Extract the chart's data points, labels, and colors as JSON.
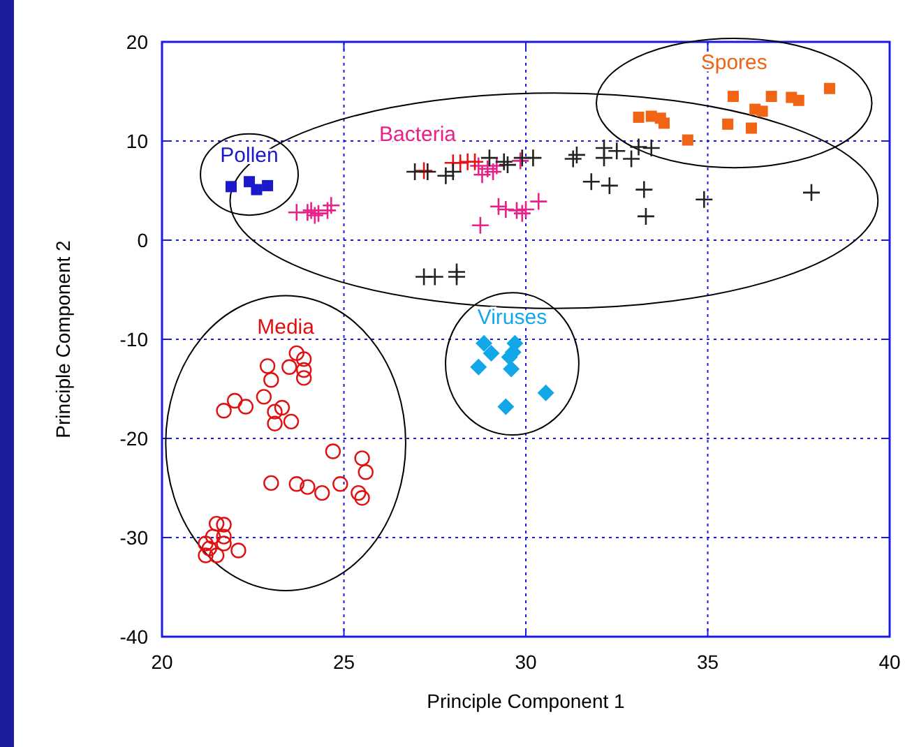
{
  "chart_data": {
    "type": "scatter",
    "xlabel": "Principle Component 1",
    "ylabel": "Principle Component 2",
    "xlim": [
      20,
      40
    ],
    "xticks": [
      20,
      25,
      30,
      35,
      40
    ],
    "ylim": [
      -40,
      20
    ],
    "yticks": [
      -40,
      -30,
      -20,
      -10,
      0,
      10,
      20
    ],
    "grid": true,
    "series": [
      {
        "name": "Pollen",
        "color": "#1a1acc",
        "marker": "square",
        "x": [
          21.9,
          22.4,
          22.6,
          22.9
        ],
        "values": [
          5.4,
          5.9,
          5.1,
          5.5
        ]
      },
      {
        "name": "Spores",
        "color": "#f06414",
        "marker": "square",
        "x": [
          33.1,
          33.45,
          33.7,
          33.8,
          34.45,
          35.55,
          35.7,
          36.2,
          36.3,
          36.5,
          36.75,
          37.3,
          37.5,
          38.35
        ],
        "values": [
          12.4,
          12.5,
          12.3,
          11.8,
          10.1,
          11.7,
          14.5,
          11.3,
          13.2,
          13.0,
          14.5,
          14.4,
          14.1,
          15.3
        ]
      },
      {
        "name": "Bacteria",
        "color": "#e8208a",
        "marker": "cross",
        "x": [
          23.7,
          24.0,
          24.1,
          24.2,
          24.3,
          24.55,
          24.65,
          28.7,
          28.8,
          28.95,
          29.1,
          29.2,
          29.85,
          29.25,
          29.45,
          29.75,
          29.9,
          30.0,
          30.35,
          28.75
        ],
        "values": [
          2.8,
          2.8,
          3.0,
          2.5,
          2.7,
          3.0,
          3.5,
          7.5,
          6.6,
          7.2,
          6.9,
          7.5,
          8.0,
          3.4,
          3.1,
          3.0,
          2.7,
          3.1,
          3.9,
          1.5
        ]
      },
      {
        "color": "#e81010",
        "marker": "cross",
        "x": [
          27.2,
          28.0,
          28.2,
          28.4,
          28.6
        ],
        "values": [
          7.0,
          7.8,
          7.8,
          7.9,
          7.9
        ]
      },
      {
        "color": "#222222",
        "marker": "cross",
        "x": [
          26.95,
          27.3,
          27.8,
          28.0,
          29.0,
          29.4,
          29.5,
          29.9,
          30.2,
          31.3,
          31.4,
          32.15,
          32.15,
          32.5,
          32.9,
          33.1,
          33.45,
          31.8,
          32.3,
          33.25,
          34.9,
          37.85,
          33.3,
          27.2,
          27.5,
          28.1,
          28.1
        ],
        "values": [
          6.9,
          6.9,
          6.5,
          6.9,
          8.3,
          7.9,
          7.6,
          8.3,
          8.3,
          8.2,
          8.6,
          8.3,
          9.3,
          9.0,
          8.2,
          9.4,
          9.3,
          5.9,
          5.5,
          5.1,
          4.1,
          4.8,
          2.4,
          -3.7,
          -3.7,
          -3.2,
          -3.7
        ]
      },
      {
        "name": "Viruses",
        "color": "#12a8e8",
        "marker": "diamond",
        "x": [
          28.85,
          29.05,
          28.7,
          29.7,
          29.65,
          29.55,
          29.6,
          30.55,
          29.45
        ],
        "values": [
          -10.4,
          -11.4,
          -12.8,
          -10.4,
          -11.3,
          -11.8,
          -13.0,
          -15.4,
          -16.8
        ]
      },
      {
        "name": "Media",
        "color": "#e01010",
        "marker": "circle",
        "x": [
          23.7,
          23.5,
          23.9,
          23.9,
          23.9,
          22.9,
          23.0,
          22.8,
          22.0,
          21.7,
          22.3,
          23.3,
          23.1,
          23.1,
          23.55,
          24.7,
          25.5,
          25.6,
          23.0,
          23.7,
          24.0,
          24.4,
          24.9,
          25.4,
          25.5,
          21.5,
          21.7,
          21.4,
          21.7,
          21.2,
          21.7,
          21.3,
          21.5,
          21.2,
          22.1
        ],
        "values": [
          -11.4,
          -12.8,
          -12.0,
          -13.1,
          -13.9,
          -12.7,
          -14.1,
          -15.8,
          -16.2,
          -17.2,
          -16.8,
          -16.9,
          -17.3,
          -18.5,
          -18.3,
          -21.3,
          -22.0,
          -23.4,
          -24.5,
          -24.6,
          -24.9,
          -25.5,
          -24.6,
          -25.5,
          -26.0,
          -28.6,
          -28.7,
          -29.9,
          -29.9,
          -30.6,
          -30.6,
          -31.1,
          -31.8,
          -31.8,
          -31.3
        ]
      }
    ]
  }
}
